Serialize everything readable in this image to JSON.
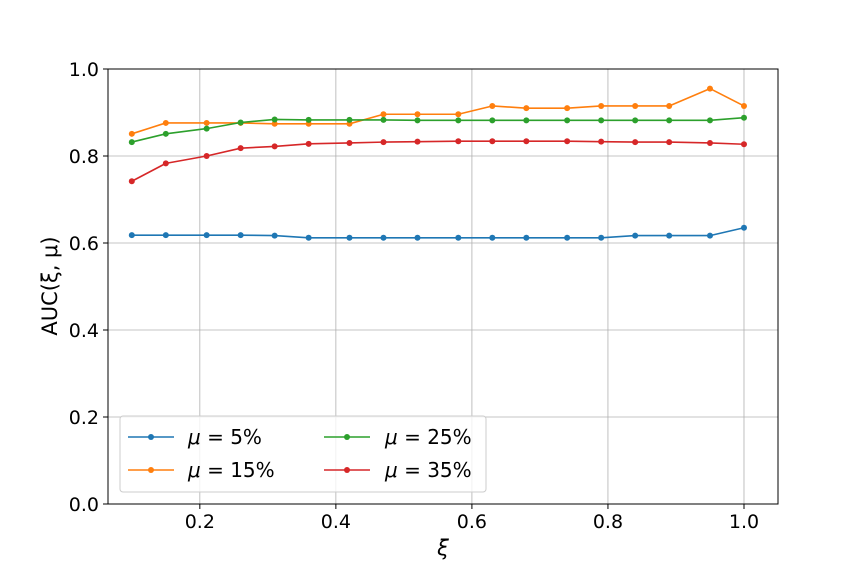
{
  "chart_data": {
    "type": "line",
    "xlabel": "ξ",
    "ylabel": "AUC(ξ, μ)",
    "xlim": [
      0.065,
      1.05
    ],
    "ylim": [
      0.0,
      1.0
    ],
    "xticks": [
      "0.2",
      "0.4",
      "0.6",
      "0.8",
      "1.0"
    ],
    "yticks": [
      "0.0",
      "0.2",
      "0.4",
      "0.6",
      "0.8",
      "1.0"
    ],
    "grid": true,
    "legend_position": "lower-left",
    "x": [
      0.1,
      0.15,
      0.21,
      0.26,
      0.31,
      0.36,
      0.42,
      0.47,
      0.52,
      0.58,
      0.63,
      0.68,
      0.74,
      0.79,
      0.84,
      0.89,
      0.95,
      1.0
    ],
    "series": [
      {
        "name": "μ = 5%",
        "name_var": "μ = ",
        "name_val": "5%",
        "color": "#1f77b4",
        "values": [
          0.618,
          0.618,
          0.618,
          0.618,
          0.617,
          0.612,
          0.612,
          0.612,
          0.612,
          0.612,
          0.612,
          0.612,
          0.612,
          0.612,
          0.617,
          0.617,
          0.617,
          0.635
        ]
      },
      {
        "name": "μ = 15%",
        "name_var": "μ = ",
        "name_val": "15%",
        "color": "#ff7f0e",
        "values": [
          0.851,
          0.876,
          0.876,
          0.876,
          0.874,
          0.874,
          0.874,
          0.896,
          0.896,
          0.896,
          0.915,
          0.91,
          0.91,
          0.915,
          0.915,
          0.915,
          0.955,
          0.915
        ]
      },
      {
        "name": "μ = 25%",
        "name_var": "μ = ",
        "name_val": "25%",
        "color": "#2ca02c",
        "values": [
          0.832,
          0.851,
          0.863,
          0.877,
          0.884,
          0.883,
          0.883,
          0.883,
          0.882,
          0.882,
          0.882,
          0.882,
          0.882,
          0.882,
          0.882,
          0.882,
          0.882,
          0.888
        ]
      },
      {
        "name": "μ = 35%",
        "name_var": "μ = ",
        "name_val": "35%",
        "color": "#d62728",
        "values": [
          0.742,
          0.783,
          0.8,
          0.818,
          0.822,
          0.828,
          0.83,
          0.832,
          0.833,
          0.834,
          0.834,
          0.834,
          0.834,
          0.833,
          0.832,
          0.832,
          0.83,
          0.827
        ]
      }
    ]
  }
}
